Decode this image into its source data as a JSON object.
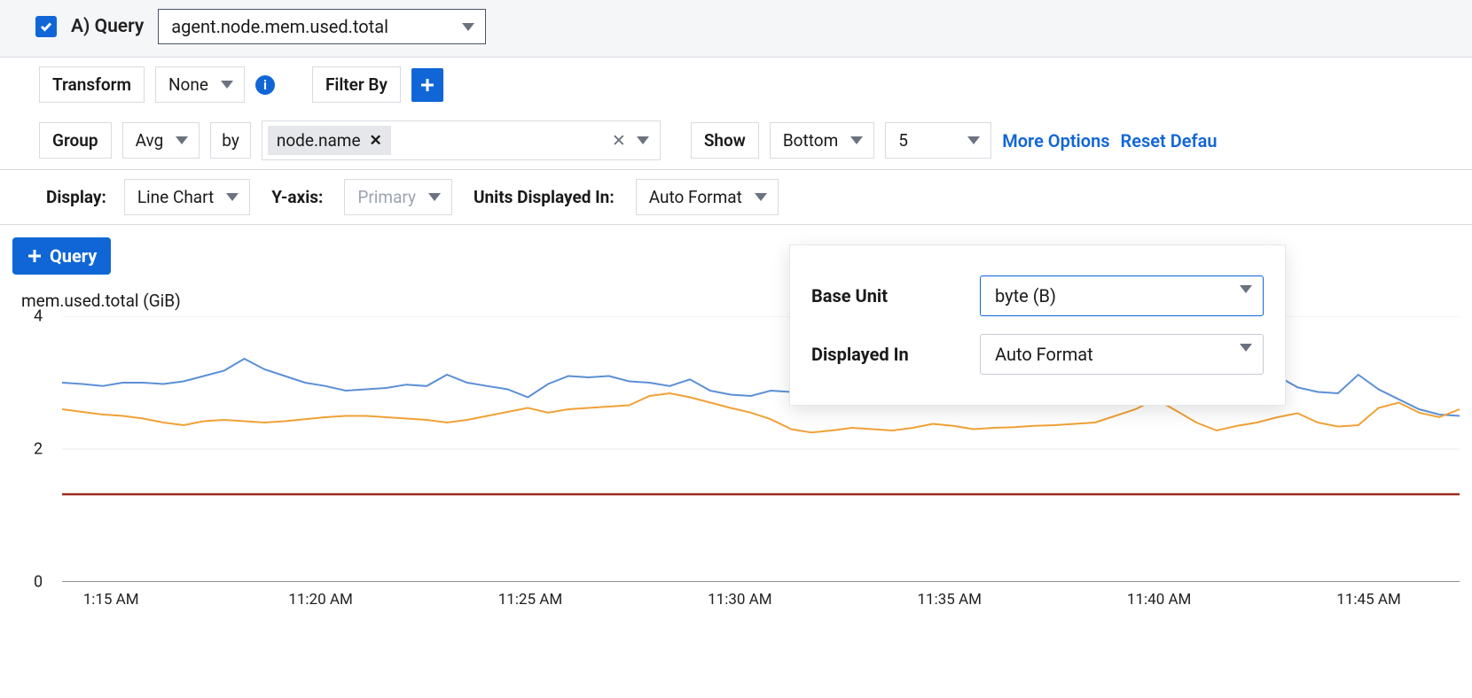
{
  "header": {
    "query_label": "A) Query",
    "metric": "agent.node.mem.used.total"
  },
  "row_transform": {
    "transform_label": "Transform",
    "transform_value": "None",
    "filter_label": "Filter By"
  },
  "row_group": {
    "group_label": "Group",
    "agg_value": "Avg",
    "by_label": "by",
    "tag_value": "node.name",
    "show_label": "Show",
    "show_value": "Bottom",
    "show_count": "5",
    "more_options": "More Options",
    "reset_defaults": "Reset Defau"
  },
  "row_display": {
    "display_label": "Display:",
    "display_value": "Line Chart",
    "yaxis_label": "Y-axis:",
    "yaxis_value": "Primary",
    "units_label": "Units Displayed In:",
    "units_value": "Auto Format"
  },
  "add_query_label": "Query",
  "popover": {
    "base_unit_label": "Base Unit",
    "base_unit_value": "byte (B)",
    "displayed_in_label": "Displayed In",
    "displayed_in_value": "Auto Format"
  },
  "chart": {
    "type": "line",
    "title": "mem.used.total (GiB)",
    "ylim": [
      0,
      4
    ],
    "yticks": [
      0,
      2,
      4
    ],
    "xticks": [
      "1:15 AM",
      "11:20 AM",
      "11:25 AM",
      "11:30 AM",
      "11:35 AM",
      "11:40 AM",
      "11:45 AM"
    ],
    "xtick_positions_pct": [
      3.5,
      18.5,
      33.5,
      48.5,
      63.5,
      78.5,
      93.5
    ],
    "grid_color": "#e7e9ed",
    "axis_color": "#4a4a4a",
    "background_color": "#ffffff",
    "series": [
      {
        "name": "blue",
        "color": "#5b8fd6",
        "width": 2,
        "values": [
          3.0,
          2.98,
          2.95,
          3.0,
          3.0,
          2.98,
          3.02,
          3.1,
          3.18,
          3.36,
          3.2,
          3.1,
          3.0,
          2.95,
          2.88,
          2.9,
          2.92,
          2.97,
          2.95,
          3.12,
          3.0,
          2.95,
          2.9,
          2.78,
          2.98,
          3.1,
          3.08,
          3.1,
          3.02,
          3.0,
          2.95,
          3.05,
          2.88,
          2.82,
          2.8,
          2.88,
          2.86,
          2.85,
          2.86,
          2.86,
          2.9,
          3.0,
          3.02,
          2.95,
          2.95,
          2.92,
          2.88,
          2.92,
          2.9,
          2.88,
          2.9,
          3.0,
          3.08,
          3.06,
          2.98,
          2.9,
          2.9,
          2.88,
          2.86,
          2.85,
          3.1,
          2.93,
          2.86,
          2.84,
          3.12,
          2.9,
          2.75,
          2.6,
          2.52,
          2.5
        ]
      },
      {
        "name": "orange",
        "color": "#f0a135",
        "width": 2,
        "values": [
          2.6,
          2.56,
          2.52,
          2.5,
          2.46,
          2.4,
          2.36,
          2.42,
          2.44,
          2.42,
          2.4,
          2.42,
          2.45,
          2.48,
          2.5,
          2.5,
          2.48,
          2.46,
          2.44,
          2.4,
          2.44,
          2.5,
          2.56,
          2.62,
          2.55,
          2.6,
          2.62,
          2.64,
          2.66,
          2.8,
          2.84,
          2.78,
          2.7,
          2.62,
          2.55,
          2.45,
          2.3,
          2.25,
          2.28,
          2.32,
          2.3,
          2.28,
          2.32,
          2.38,
          2.35,
          2.3,
          2.32,
          2.33,
          2.35,
          2.36,
          2.38,
          2.4,
          2.5,
          2.6,
          2.75,
          2.58,
          2.4,
          2.28,
          2.35,
          2.4,
          2.48,
          2.54,
          2.4,
          2.34,
          2.36,
          2.62,
          2.7,
          2.55,
          2.48,
          2.6
        ]
      },
      {
        "name": "red",
        "color": "#9c2b1f",
        "width": 2.5,
        "values": [
          1.32,
          1.32,
          1.32,
          1.32,
          1.32,
          1.32,
          1.32,
          1.32,
          1.32,
          1.32,
          1.32,
          1.32,
          1.32,
          1.32,
          1.32,
          1.32,
          1.32,
          1.32,
          1.32,
          1.32,
          1.32,
          1.32,
          1.32,
          1.32,
          1.32,
          1.32,
          1.32,
          1.32,
          1.32,
          1.32,
          1.32,
          1.32,
          1.32,
          1.32,
          1.32,
          1.32,
          1.32,
          1.32,
          1.32,
          1.32,
          1.32,
          1.32,
          1.32,
          1.32,
          1.32,
          1.32,
          1.32,
          1.32,
          1.32,
          1.32,
          1.32,
          1.32,
          1.32,
          1.32,
          1.32,
          1.32,
          1.32,
          1.32,
          1.32,
          1.32,
          1.32,
          1.32,
          1.32,
          1.32,
          1.32,
          1.32,
          1.32,
          1.32,
          1.32,
          1.32
        ]
      }
    ]
  }
}
